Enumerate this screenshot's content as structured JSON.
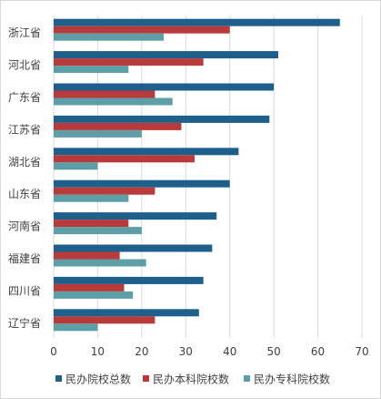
{
  "chart_data": {
    "type": "bar",
    "orientation": "horizontal",
    "title": "",
    "xlabel": "",
    "ylabel": "",
    "categories": [
      "浙江省",
      "河北省",
      "广东省",
      "江苏省",
      "湖北省",
      "山东省",
      "河南省",
      "福建省",
      "四川省",
      "辽宁省"
    ],
    "series": [
      {
        "name": "民办院校总数",
        "color": "#1F5F8B",
        "values": [
          65,
          51,
          50,
          49,
          42,
          40,
          37,
          36,
          34,
          33
        ]
      },
      {
        "name": "民办本科院校数",
        "color": "#B83A3A",
        "values": [
          40,
          34,
          23,
          29,
          32,
          23,
          17,
          15,
          16,
          23
        ]
      },
      {
        "name": "民办专科院校数",
        "color": "#5E9EA6",
        "values": [
          25,
          17,
          27,
          20,
          10,
          17,
          20,
          21,
          18,
          10
        ]
      }
    ],
    "xlim": [
      0,
      70
    ],
    "xticks": [
      0,
      10,
      20,
      30,
      40,
      50,
      60,
      70
    ],
    "grid": true,
    "legend_position": "bottom"
  }
}
